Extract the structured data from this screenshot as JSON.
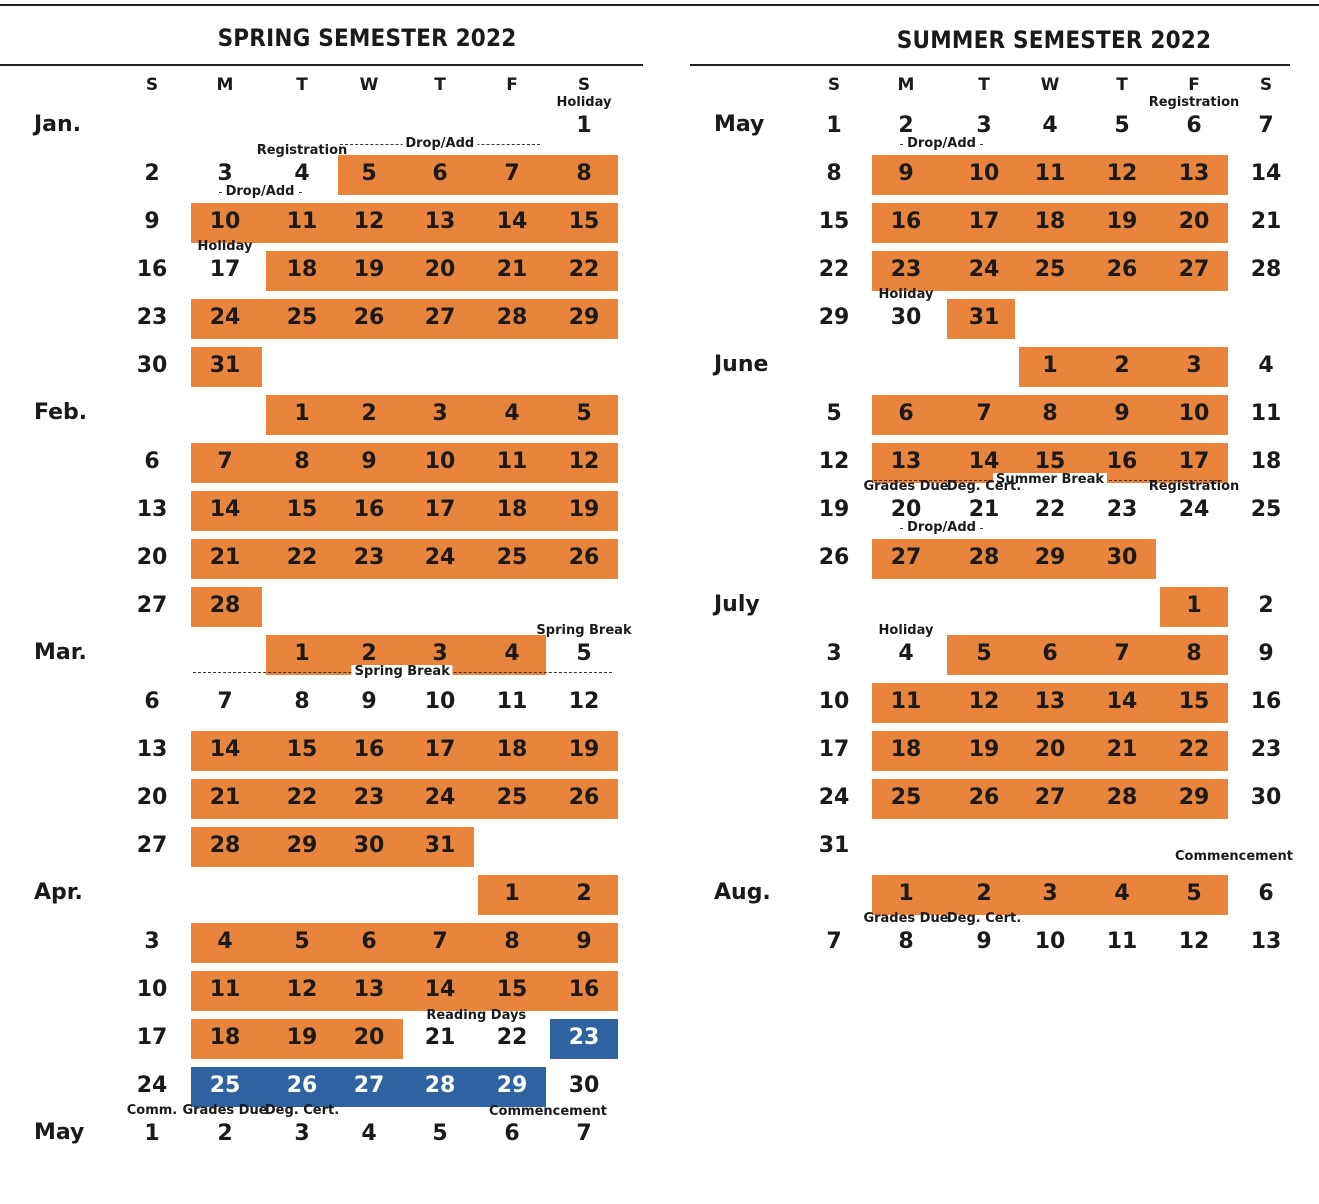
{
  "colors": {
    "orange": "#e8843c",
    "blue": "#2f62a1"
  },
  "day_headers": [
    "S",
    "M",
    "T",
    "W",
    "T",
    "F",
    "S"
  ],
  "spring": {
    "title": "SPRING SEMESTER 2022",
    "months": [
      {
        "label": "Jan.",
        "row": 0
      },
      {
        "label": "Feb.",
        "row": 6
      },
      {
        "label": "Mar.",
        "row": 11
      },
      {
        "label": "Apr.",
        "row": 16
      },
      {
        "label": "May",
        "row": 21
      }
    ],
    "rows": [
      [
        null,
        null,
        null,
        null,
        null,
        null,
        1
      ],
      [
        2,
        3,
        4,
        5,
        6,
        7,
        8
      ],
      [
        9,
        10,
        11,
        12,
        13,
        14,
        15
      ],
      [
        16,
        17,
        18,
        19,
        20,
        21,
        22
      ],
      [
        23,
        24,
        25,
        26,
        27,
        28,
        29
      ],
      [
        30,
        31,
        null,
        null,
        null,
        null,
        null
      ],
      [
        null,
        null,
        1,
        2,
        3,
        4,
        5
      ],
      [
        6,
        7,
        8,
        9,
        10,
        11,
        12
      ],
      [
        13,
        14,
        15,
        16,
        17,
        18,
        19
      ],
      [
        20,
        21,
        22,
        23,
        24,
        25,
        26
      ],
      [
        27,
        28,
        null,
        null,
        null,
        null,
        null
      ],
      [
        null,
        null,
        1,
        2,
        3,
        4,
        5
      ],
      [
        6,
        7,
        8,
        9,
        10,
        11,
        12
      ],
      [
        13,
        14,
        15,
        16,
        17,
        18,
        19
      ],
      [
        20,
        21,
        22,
        23,
        24,
        25,
        26
      ],
      [
        27,
        28,
        29,
        30,
        31,
        null,
        null
      ],
      [
        null,
        null,
        null,
        null,
        null,
        1,
        2
      ],
      [
        3,
        4,
        5,
        6,
        7,
        8,
        9
      ],
      [
        10,
        11,
        12,
        13,
        14,
        15,
        16
      ],
      [
        17,
        18,
        19,
        20,
        21,
        22,
        23
      ],
      [
        24,
        25,
        26,
        27,
        28,
        29,
        30
      ],
      [
        1,
        2,
        3,
        4,
        5,
        6,
        7
      ]
    ],
    "highlights": [
      {
        "row": 1,
        "from": 3,
        "to": 6,
        "color": "orange"
      },
      {
        "row": 2,
        "from": 1,
        "to": 6,
        "color": "orange"
      },
      {
        "row": 3,
        "from": 2,
        "to": 6,
        "color": "orange"
      },
      {
        "row": 4,
        "from": 1,
        "to": 6,
        "color": "orange"
      },
      {
        "row": 5,
        "from": 1,
        "to": 1,
        "color": "orange"
      },
      {
        "row": 6,
        "from": 2,
        "to": 6,
        "color": "orange"
      },
      {
        "row": 7,
        "from": 1,
        "to": 6,
        "color": "orange"
      },
      {
        "row": 8,
        "from": 1,
        "to": 6,
        "color": "orange"
      },
      {
        "row": 9,
        "from": 1,
        "to": 6,
        "color": "orange"
      },
      {
        "row": 10,
        "from": 1,
        "to": 1,
        "color": "orange"
      },
      {
        "row": 11,
        "from": 2,
        "to": 5,
        "color": "orange"
      },
      {
        "row": 13,
        "from": 1,
        "to": 6,
        "color": "orange"
      },
      {
        "row": 14,
        "from": 1,
        "to": 6,
        "color": "orange"
      },
      {
        "row": 15,
        "from": 1,
        "to": 4,
        "color": "orange"
      },
      {
        "row": 16,
        "from": 5,
        "to": 6,
        "color": "orange"
      },
      {
        "row": 17,
        "from": 1,
        "to": 6,
        "color": "orange"
      },
      {
        "row": 18,
        "from": 1,
        "to": 6,
        "color": "orange"
      },
      {
        "row": 19,
        "from": 1,
        "to": 3,
        "color": "orange"
      },
      {
        "row": 19,
        "from": 6,
        "to": 6,
        "color": "blue"
      },
      {
        "row": 20,
        "from": 1,
        "to": 5,
        "color": "blue"
      }
    ],
    "notes": [
      {
        "text": "Holiday",
        "row": 0,
        "col": 6
      },
      {
        "text": "Registration",
        "row": 1,
        "col": 2
      },
      {
        "text": "Drop/Add",
        "row": 1,
        "from": 3,
        "to": 5
      },
      {
        "text": "Drop/Add",
        "row": 2,
        "from": 1,
        "to": 2
      },
      {
        "text": "Holiday",
        "row": 3,
        "col": 1
      },
      {
        "text": "Spring Break",
        "row": 11,
        "col": 6
      },
      {
        "text": "Spring Break",
        "row": 12,
        "from": 1,
        "to": 6
      },
      {
        "text": "Reading Days",
        "row": 19,
        "from": 4,
        "to": 5
      },
      {
        "text": "Commencement",
        "row": 21,
        "from": 5,
        "to": 6,
        "offset": -1
      },
      {
        "text": "Comm.",
        "row": 21,
        "col": 0
      },
      {
        "text": "Grades Due",
        "row": 21,
        "col": 1
      },
      {
        "text": "Deg. Cert.",
        "row": 21,
        "col": 2
      }
    ]
  },
  "summer": {
    "title": "SUMMER SEMESTER 2022",
    "months": [
      {
        "label": "May",
        "row": 0
      },
      {
        "label": "June",
        "row": 5
      },
      {
        "label": "July",
        "row": 10
      },
      {
        "label": "Aug.",
        "row": 16
      }
    ],
    "rows": [
      [
        1,
        2,
        3,
        4,
        5,
        6,
        7
      ],
      [
        8,
        9,
        10,
        11,
        12,
        13,
        14
      ],
      [
        15,
        16,
        17,
        18,
        19,
        20,
        21
      ],
      [
        22,
        23,
        24,
        25,
        26,
        27,
        28
      ],
      [
        29,
        30,
        31,
        null,
        null,
        null,
        null
      ],
      [
        null,
        null,
        null,
        1,
        2,
        3,
        4
      ],
      [
        5,
        6,
        7,
        8,
        9,
        10,
        11
      ],
      [
        12,
        13,
        14,
        15,
        16,
        17,
        18
      ],
      [
        19,
        20,
        21,
        22,
        23,
        24,
        25
      ],
      [
        26,
        27,
        28,
        29,
        30,
        null,
        null
      ],
      [
        null,
        null,
        null,
        null,
        null,
        1,
        2
      ],
      [
        3,
        4,
        5,
        6,
        7,
        8,
        9
      ],
      [
        10,
        11,
        12,
        13,
        14,
        15,
        16
      ],
      [
        17,
        18,
        19,
        20,
        21,
        22,
        23
      ],
      [
        24,
        25,
        26,
        27,
        28,
        29,
        30
      ],
      [
        31,
        null,
        null,
        null,
        null,
        null,
        null
      ],
      [
        null,
        1,
        2,
        3,
        4,
        5,
        6
      ],
      [
        7,
        8,
        9,
        10,
        11,
        12,
        13
      ]
    ],
    "highlights": [
      {
        "row": 1,
        "from": 1,
        "to": 5,
        "color": "orange"
      },
      {
        "row": 2,
        "from": 1,
        "to": 5,
        "color": "orange"
      },
      {
        "row": 3,
        "from": 1,
        "to": 5,
        "color": "orange"
      },
      {
        "row": 4,
        "from": 2,
        "to": 2,
        "color": "orange"
      },
      {
        "row": 5,
        "from": 3,
        "to": 5,
        "color": "orange"
      },
      {
        "row": 6,
        "from": 1,
        "to": 5,
        "color": "orange"
      },
      {
        "row": 7,
        "from": 1,
        "to": 5,
        "color": "orange"
      },
      {
        "row": 9,
        "from": 1,
        "to": 4,
        "color": "orange"
      },
      {
        "row": 10,
        "from": 5,
        "to": 5,
        "color": "orange"
      },
      {
        "row": 11,
        "from": 2,
        "to": 5,
        "color": "orange"
      },
      {
        "row": 12,
        "from": 1,
        "to": 5,
        "color": "orange"
      },
      {
        "row": 13,
        "from": 1,
        "to": 5,
        "color": "orange"
      },
      {
        "row": 14,
        "from": 1,
        "to": 5,
        "color": "orange"
      },
      {
        "row": 16,
        "from": 1,
        "to": 5,
        "color": "orange"
      }
    ],
    "notes": [
      {
        "text": "Registration",
        "row": 0,
        "col": 5
      },
      {
        "text": "Drop/Add",
        "row": 1,
        "from": 1,
        "to": 2
      },
      {
        "text": "Holiday",
        "row": 4,
        "col": 1
      },
      {
        "text": "Summer Break",
        "row": 8,
        "from": 1,
        "to": 5,
        "label_col": 3
      },
      {
        "text": "Grades Due",
        "row": 8,
        "col": 1
      },
      {
        "text": "Deg. Cert.",
        "row": 8,
        "col": 2
      },
      {
        "text": "Registration",
        "row": 8,
        "col": 5
      },
      {
        "text": "Drop/Add",
        "row": 9,
        "from": 1,
        "to": 2
      },
      {
        "text": "Holiday",
        "row": 11,
        "col": 1
      },
      {
        "text": "Commencement",
        "row": 16,
        "col": 5,
        "offset": -1,
        "shift": 40
      },
      {
        "text": "Grades Due",
        "row": 17,
        "col": 1
      },
      {
        "text": "Deg. Cert.",
        "row": 17,
        "col": 2
      }
    ]
  }
}
